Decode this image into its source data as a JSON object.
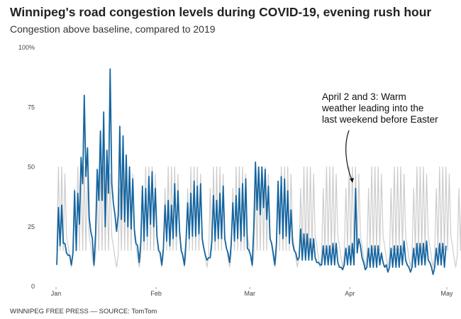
{
  "title": "Winnipeg's road congestion levels during COVID-19, evening rush hour",
  "subtitle": "Congestion above baseline, compared to 2019",
  "footer": "WINNIPEG FREE PRESS — SOURCE: TomTom",
  "chart_data": {
    "type": "line",
    "title": "Winnipeg's road congestion levels during COVID-19, evening rush hour",
    "subtitle": "Congestion above baseline, compared to 2019",
    "xlim": [
      "Jan 1",
      "May 1"
    ],
    "ylim": [
      0,
      100
    ],
    "x_ticks": [
      "Jan",
      "Feb",
      "Mar",
      "Apr",
      "May"
    ],
    "y_ticks": [
      "0",
      "25",
      "50",
      "75",
      "100%"
    ],
    "grid": false,
    "annotation": {
      "lines": [
        "April 2 and 3: Warm",
        "weather leading into the",
        "last weekend before Easter"
      ],
      "target": "Apr 2"
    },
    "series": [
      {
        "role": "2019",
        "color": "#cccccc",
        "values": [
          [
            15,
            50
          ],
          [
            15,
            50
          ],
          [
            15,
            47
          ],
          [
            21,
            17
          ],
          [
            12,
            8
          ],
          [
            13,
            41
          ],
          [
            15,
            50
          ],
          [
            15,
            50
          ],
          [
            15,
            50
          ],
          [
            15,
            47
          ],
          [
            21,
            17
          ],
          [
            12,
            8
          ],
          [
            13,
            41
          ],
          [
            15,
            50
          ],
          [
            15,
            50
          ],
          [
            15,
            50
          ],
          [
            15,
            47
          ],
          [
            21,
            17
          ],
          [
            12,
            8
          ],
          [
            13,
            41
          ],
          [
            15,
            50
          ],
          [
            15,
            50
          ],
          [
            15,
            50
          ],
          [
            15,
            47
          ],
          [
            21,
            17
          ],
          [
            12,
            8
          ],
          [
            13,
            41
          ],
          [
            15,
            50
          ],
          [
            15,
            50
          ],
          [
            15,
            50
          ],
          [
            15,
            47
          ],
          [
            21,
            17
          ],
          [
            12,
            8
          ],
          [
            13,
            41
          ],
          [
            15,
            50
          ],
          [
            15,
            50
          ],
          [
            15,
            50
          ],
          [
            15,
            47
          ],
          [
            21,
            17
          ],
          [
            12,
            8
          ],
          [
            13,
            41
          ],
          [
            15,
            50
          ],
          [
            15,
            50
          ],
          [
            15,
            50
          ],
          [
            15,
            47
          ],
          [
            21,
            17
          ],
          [
            12,
            8
          ],
          [
            13,
            41
          ],
          [
            15,
            50
          ],
          [
            15,
            50
          ],
          [
            15,
            50
          ],
          [
            15,
            47
          ],
          [
            21,
            17
          ],
          [
            12,
            8
          ],
          [
            13,
            41
          ],
          [
            15,
            50
          ],
          [
            15,
            50
          ],
          [
            15,
            50
          ],
          [
            15,
            47
          ],
          [
            21,
            17
          ],
          [
            12,
            8
          ],
          [
            13,
            41
          ],
          [
            15,
            50
          ],
          [
            15,
            50
          ],
          [
            15,
            50
          ],
          [
            15,
            47
          ],
          [
            21,
            17
          ],
          [
            12,
            8
          ],
          [
            13,
            41
          ],
          [
            15,
            50
          ],
          [
            15,
            50
          ],
          [
            15,
            50
          ],
          [
            15,
            47
          ],
          [
            21,
            17
          ],
          [
            12,
            8
          ],
          [
            13,
            41
          ],
          [
            15,
            50
          ],
          [
            15,
            50
          ],
          [
            15,
            50
          ],
          [
            15,
            47
          ],
          [
            21,
            17
          ],
          [
            12,
            8
          ],
          [
            13,
            41
          ],
          [
            15,
            50
          ],
          [
            15,
            50
          ],
          [
            15,
            50
          ],
          [
            15,
            47
          ],
          [
            21,
            17
          ],
          [
            12,
            8
          ],
          [
            13,
            41
          ],
          [
            15,
            50
          ],
          [
            15,
            50
          ],
          [
            15,
            50
          ],
          [
            15,
            47
          ],
          [
            21,
            17
          ],
          [
            12,
            8
          ],
          [
            13,
            41
          ],
          [
            15,
            50
          ],
          [
            15,
            50
          ],
          [
            15,
            50
          ],
          [
            15,
            47
          ],
          [
            21,
            17
          ],
          [
            12,
            8
          ],
          [
            13,
            41
          ],
          [
            15,
            50
          ],
          [
            15,
            50
          ],
          [
            15,
            50
          ],
          [
            15,
            47
          ],
          [
            21,
            17
          ],
          [
            12,
            8
          ],
          [
            13,
            41
          ],
          [
            15,
            50
          ],
          [
            15,
            50
          ],
          [
            15,
            50
          ],
          [
            15,
            47
          ],
          [
            21,
            17
          ],
          [
            12,
            8
          ],
          [
            13,
            41
          ],
          [
            15,
            50
          ],
          [
            15,
            50
          ],
          [
            15,
            50
          ],
          [
            15,
            47
          ],
          [
            21,
            17
          ],
          [
            12,
            8
          ],
          [
            13,
            41
          ],
          [
            15,
            50
          ]
        ]
      },
      {
        "role": "2020",
        "color": "#1565a0",
        "values": [
          [
            9,
            33
          ],
          [
            17,
            34
          ],
          [
            18,
            18
          ],
          [
            14,
            13
          ],
          [
            13,
            9
          ],
          [
            14,
            40
          ],
          [
            15,
            39
          ],
          [
            26,
            54
          ],
          [
            43,
            80
          ],
          [
            46,
            58
          ],
          [
            29,
            23
          ],
          [
            20,
            9
          ],
          [
            22,
            49
          ],
          [
            36,
            65
          ],
          [
            36,
            73
          ],
          [
            25,
            57
          ],
          [
            39,
            91
          ],
          [
            43,
            35
          ],
          [
            30,
            23
          ],
          [
            30,
            67
          ],
          [
            28,
            63
          ],
          [
            27,
            55
          ],
          [
            25,
            50
          ],
          [
            24,
            45
          ],
          [
            24,
            18
          ],
          [
            17,
            10
          ],
          [
            18,
            42
          ],
          [
            19,
            41
          ],
          [
            21,
            46
          ],
          [
            26,
            48
          ],
          [
            25,
            41
          ],
          [
            21,
            15
          ],
          [
            14,
            9
          ],
          [
            16,
            34
          ],
          [
            19,
            36
          ],
          [
            17,
            34
          ],
          [
            20,
            43
          ],
          [
            21,
            40
          ],
          [
            23,
            15
          ],
          [
            13,
            9
          ],
          [
            19,
            35
          ],
          [
            20,
            39
          ],
          [
            21,
            44
          ],
          [
            21,
            42
          ],
          [
            22,
            43
          ],
          [
            20,
            16
          ],
          [
            13,
            11
          ],
          [
            12,
            12
          ],
          [
            19,
            38
          ],
          [
            19,
            36
          ],
          [
            20,
            39
          ],
          [
            20,
            42
          ],
          [
            20,
            16
          ],
          [
            14,
            10
          ],
          [
            18,
            35
          ],
          [
            19,
            38
          ],
          [
            20,
            41
          ],
          [
            19,
            43
          ],
          [
            21,
            45
          ],
          [
            16,
            15
          ],
          [
            13,
            9
          ],
          [
            25,
            52
          ],
          [
            32,
            50
          ],
          [
            30,
            50
          ],
          [
            33,
            49
          ],
          [
            28,
            42
          ],
          [
            20,
            18
          ],
          [
            14,
            9
          ],
          [
            18,
            44
          ],
          [
            22,
            46
          ],
          [
            20,
            45
          ],
          [
            21,
            40
          ],
          [
            18,
            32
          ],
          [
            18,
            15
          ],
          [
            14,
            11
          ],
          [
            12,
            24
          ],
          [
            11,
            22
          ],
          [
            11,
            22
          ],
          [
            11,
            20
          ],
          [
            11,
            20
          ],
          [
            12,
            10
          ],
          [
            10,
            9
          ],
          [
            9,
            17
          ],
          [
            9,
            17
          ],
          [
            9,
            17
          ],
          [
            9,
            18
          ],
          [
            9,
            18
          ],
          [
            10,
            8
          ],
          [
            8,
            7
          ],
          [
            9,
            16
          ],
          [
            9,
            17
          ],
          [
            9,
            18
          ],
          [
            9,
            41
          ],
          [
            14,
            20
          ],
          [
            17,
            12
          ],
          [
            10,
            7
          ],
          [
            8,
            16
          ],
          [
            8,
            17
          ],
          [
            8,
            17
          ],
          [
            8,
            17
          ],
          [
            9,
            14
          ],
          [
            10,
            8
          ],
          [
            9,
            6
          ],
          [
            8,
            16
          ],
          [
            8,
            17
          ],
          [
            8,
            17
          ],
          [
            8,
            17
          ],
          [
            9,
            19
          ],
          [
            11,
            9
          ],
          [
            8,
            6
          ],
          [
            8,
            16
          ],
          [
            8,
            18
          ],
          [
            9,
            18
          ],
          [
            9,
            18
          ],
          [
            9,
            19
          ],
          [
            11,
            10
          ],
          [
            8,
            5
          ],
          [
            8,
            16
          ],
          [
            9,
            18
          ],
          [
            9,
            18
          ],
          [
            8,
            17
          ]
        ]
      }
    ]
  }
}
